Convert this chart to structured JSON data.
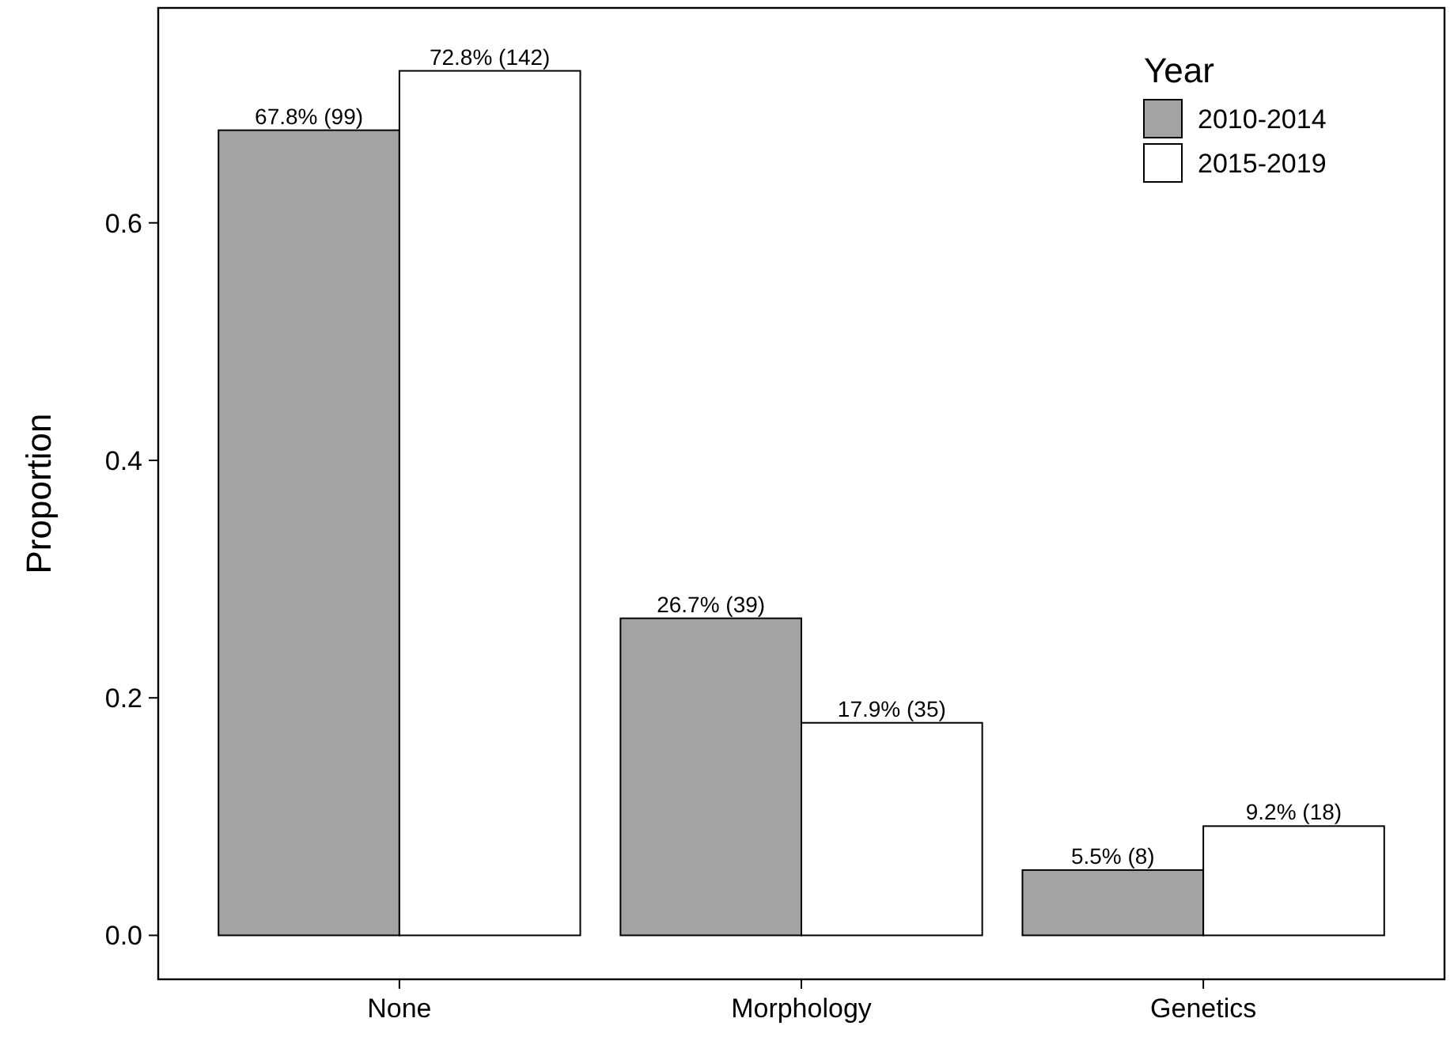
{
  "chart_data": {
    "type": "bar",
    "ylabel": "Proportion",
    "legend_title": "Year",
    "categories": [
      "None",
      "Morphology",
      "Genetics"
    ],
    "series": [
      {
        "name": "2010-2014",
        "color": "#a3a3a3",
        "values": [
          0.678,
          0.267,
          0.055
        ],
        "value_labels": [
          "67.8% (99)",
          "26.7% (39)",
          "5.5% (8)"
        ]
      },
      {
        "name": "2015-2019",
        "color": "#ffffff",
        "values": [
          0.728,
          0.179,
          0.092
        ],
        "value_labels": [
          "72.8% (142)",
          "17.9% (35)",
          "9.2% (18)"
        ]
      }
    ],
    "ylim": [
      -0.037,
      0.781
    ],
    "yticks": [
      {
        "value": 0,
        "label": "0.0"
      },
      {
        "value": 0.2,
        "label": "0.2"
      },
      {
        "value": 0.4,
        "label": "0.4"
      },
      {
        "value": 0.6,
        "label": "0.6"
      }
    ],
    "grid": false,
    "legend": "top right"
  }
}
